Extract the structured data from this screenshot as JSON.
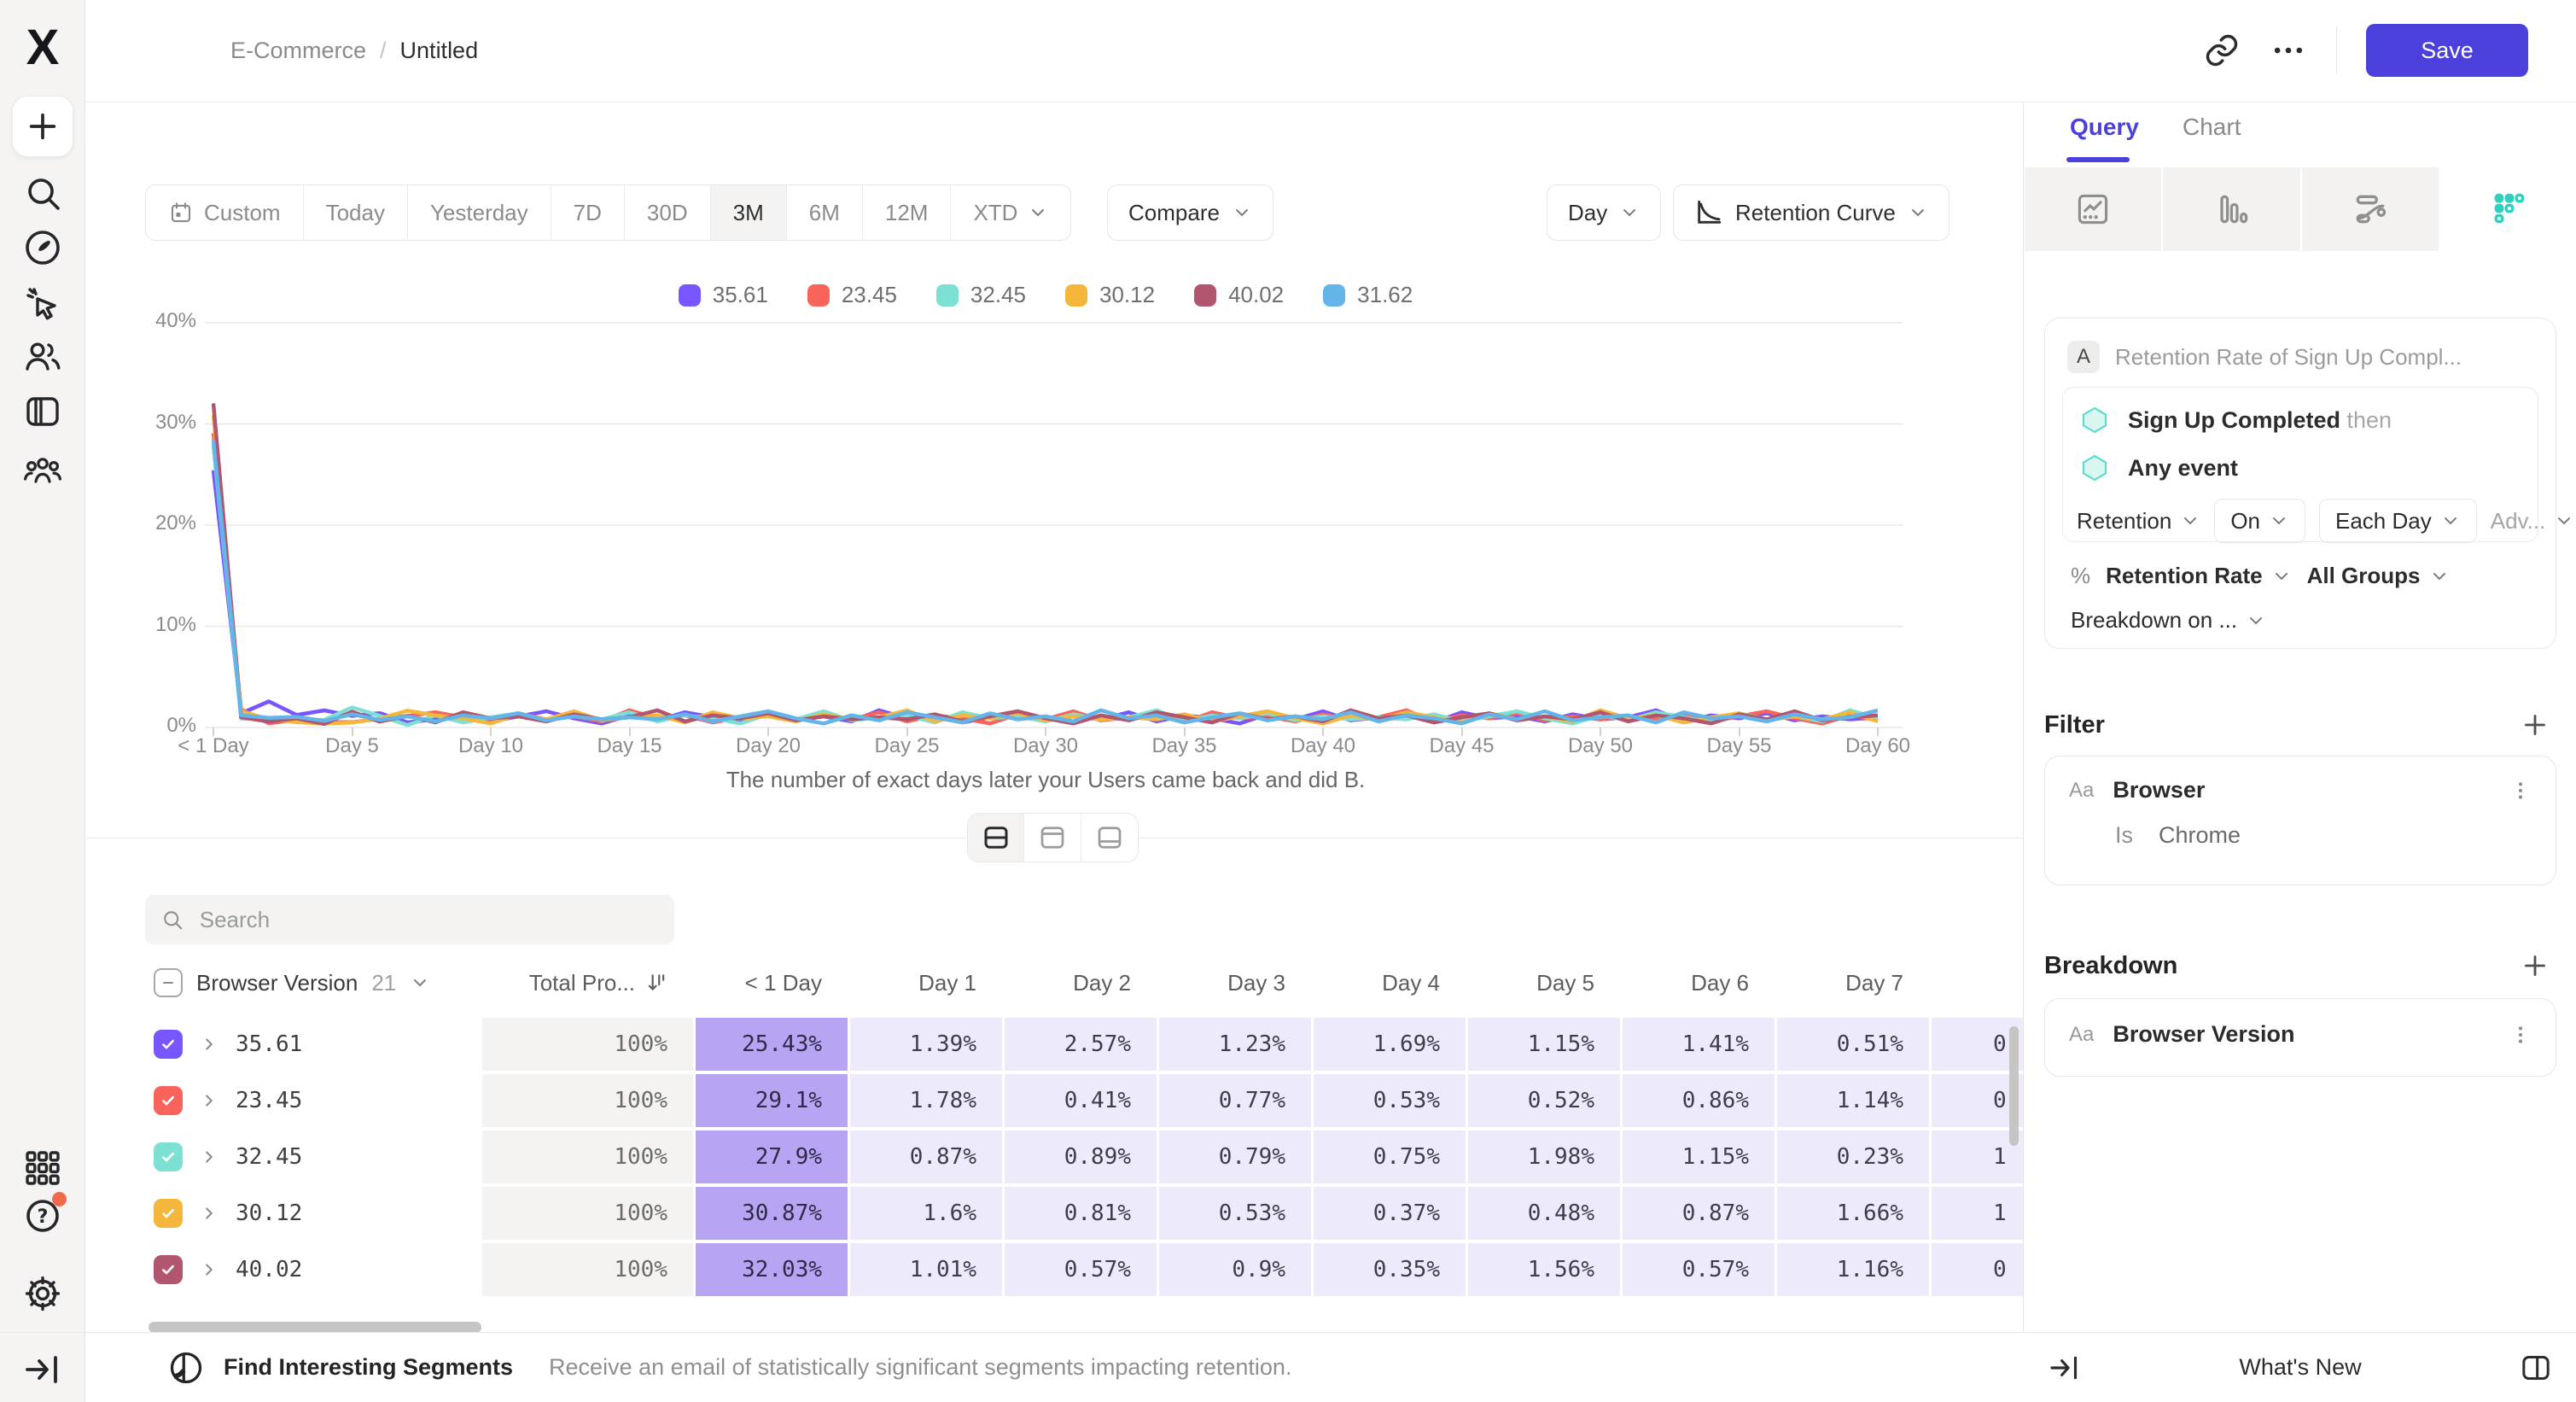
{
  "header": {
    "breadcrumb": {
      "project": "E-Commerce",
      "separator": "/",
      "report": "Untitled"
    },
    "save_label": "Save"
  },
  "toolbar": {
    "date_ranges": [
      "Custom",
      "Today",
      "Yesterday",
      "7D",
      "30D",
      "3M",
      "6M",
      "12M",
      "XTD"
    ],
    "selected_range": "3M",
    "compare_label": "Compare",
    "granularity_label": "Day",
    "chart_type_label": "Retention Curve"
  },
  "chart_data": {
    "type": "line",
    "caption": "The number of exact days later your Users came back and did B.",
    "x_tick_labels": [
      "< 1 Day",
      "Day 5",
      "Day 10",
      "Day 15",
      "Day 20",
      "Day 25",
      "Day 30",
      "Day 35",
      "Day 40",
      "Day 45",
      "Day 50",
      "Day 55",
      "Day 60"
    ],
    "y_tick_labels": [
      "0%",
      "10%",
      "20%",
      "30%",
      "40%"
    ],
    "y_tick_values": [
      0,
      10,
      20,
      30,
      40
    ],
    "ylim": [
      0,
      42
    ],
    "x_days": 60,
    "grid": true,
    "legend_position": "top-center",
    "noise": [
      0.8,
      1.3,
      0.6,
      1.1,
      1.6,
      0.9,
      0.4,
      1.2,
      0.7,
      1.5,
      1.0,
      0.5,
      1.4,
      0.8,
      1.1,
      0.6,
      1.7,
      0.9,
      1.2,
      0.5,
      1.0,
      1.4,
      0.7,
      1.1,
      0.8,
      1.5,
      0.6,
      1.2,
      0.9,
      0.4,
      1.3,
      0.8,
      1.6,
      0.7,
      1.0,
      1.2,
      0.5,
      1.5,
      0.9,
      1.1,
      0.6,
      1.3,
      0.8,
      1.0,
      1.7,
      0.6,
      1.2,
      0.9,
      1.4,
      0.7,
      1.1,
      0.8,
      1.0
    ],
    "series": [
      {
        "name": "35.61",
        "color": "#7856ff",
        "head": [
          25.43,
          1.39,
          2.57,
          1.23,
          1.69,
          1.15,
          1.41,
          0.51
        ],
        "noise_offset": 0
      },
      {
        "name": "23.45",
        "color": "#f8645c",
        "head": [
          29.1,
          1.78,
          0.41,
          0.77,
          0.53,
          0.52,
          0.86,
          1.14
        ],
        "noise_offset": 9
      },
      {
        "name": "32.45",
        "color": "#7ce0d3",
        "head": [
          27.9,
          0.87,
          0.89,
          0.79,
          0.75,
          1.98,
          1.15,
          0.23
        ],
        "noise_offset": 18
      },
      {
        "name": "30.12",
        "color": "#f5b63c",
        "head": [
          30.87,
          1.6,
          0.81,
          0.53,
          0.37,
          0.48,
          0.87,
          1.66
        ],
        "noise_offset": 27
      },
      {
        "name": "40.02",
        "color": "#b2556e",
        "head": [
          32.03,
          1.01,
          0.57,
          0.9,
          0.35,
          1.56,
          0.57,
          1.16
        ],
        "noise_offset": 36
      },
      {
        "name": "31.62",
        "color": "#63b5e9",
        "head": [
          28.4,
          1.2,
          0.95,
          1.05,
          0.65,
          1.3,
          0.75,
          1.1
        ],
        "noise_offset": 45
      }
    ]
  },
  "table": {
    "search_placeholder": "Search",
    "group_column": "Browser Version",
    "group_count": "21",
    "total_column": "Total Pro...",
    "day_columns": [
      "< 1 Day",
      "Day 1",
      "Day 2",
      "Day 3",
      "Day 4",
      "Day 5",
      "Day 6",
      "Day 7"
    ],
    "rows": [
      {
        "label": "35.61",
        "color": "#7856ff",
        "total": "100%",
        "values": [
          "25.43%",
          "1.39%",
          "2.57%",
          "1.23%",
          "1.69%",
          "1.15%",
          "1.41%",
          "0.51%"
        ],
        "cut": "0"
      },
      {
        "label": "23.45",
        "color": "#f8645c",
        "total": "100%",
        "values": [
          "29.1%",
          "1.78%",
          "0.41%",
          "0.77%",
          "0.53%",
          "0.52%",
          "0.86%",
          "1.14%"
        ],
        "cut": "0"
      },
      {
        "label": "32.45",
        "color": "#7ce0d3",
        "total": "100%",
        "values": [
          "27.9%",
          "0.87%",
          "0.89%",
          "0.79%",
          "0.75%",
          "1.98%",
          "1.15%",
          "0.23%"
        ],
        "cut": "1"
      },
      {
        "label": "30.12",
        "color": "#f5b63c",
        "total": "100%",
        "values": [
          "30.87%",
          "1.6%",
          "0.81%",
          "0.53%",
          "0.37%",
          "0.48%",
          "0.87%",
          "1.66%"
        ],
        "cut": "1"
      },
      {
        "label": "40.02",
        "color": "#b2556e",
        "total": "100%",
        "values": [
          "32.03%",
          "1.01%",
          "0.57%",
          "0.9%",
          "0.35%",
          "1.56%",
          "0.57%",
          "1.16%"
        ],
        "cut": "0"
      }
    ]
  },
  "footer": {
    "title": "Find Interesting Segments",
    "description": "Receive an email of statistically significant segments impacting retention."
  },
  "panel": {
    "tabs": {
      "query": "Query",
      "chart": "Chart"
    },
    "query": {
      "badge": "A",
      "title": "Retention Rate of Sign Up Compl...",
      "first_event": "Sign Up Completed",
      "then_label": "then",
      "second_event": "Any event",
      "retention_dd": "Retention",
      "on_dd": "On",
      "interval_dd": "Each Day",
      "advanced_dd": "Adv...",
      "measure_prefix": "%",
      "measure_dd": "Retention Rate",
      "groups_dd": "All Groups",
      "breakdown_on_dd": "Breakdown on ..."
    },
    "filter": {
      "heading": "Filter",
      "type_badge": "Aa",
      "property": "Browser",
      "operator": "Is",
      "value": "Chrome"
    },
    "breakdown": {
      "heading": "Breakdown",
      "type_badge": "Aa",
      "property": "Browser Version"
    },
    "whats_new": "What's New"
  }
}
